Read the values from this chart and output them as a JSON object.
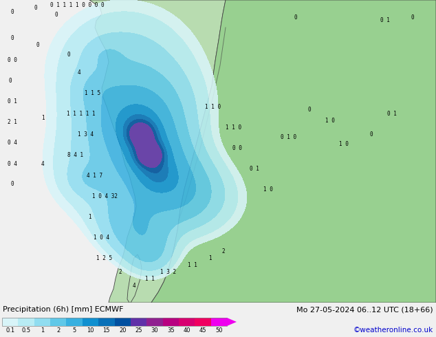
{
  "title_left": "Precipitation (6h) [mm] ECMWF",
  "title_right": "Mo 27-05-2024 06..12 UTC (18+66)",
  "credit": "©weatheronline.co.uk",
  "colorbar_labels": [
    "0.1",
    "0.5",
    "1",
    "2",
    "5",
    "10",
    "15",
    "20",
    "25",
    "30",
    "35",
    "40",
    "45",
    "50"
  ],
  "colorbar_colors": [
    "#d8f4f8",
    "#b8ecf4",
    "#90ddf0",
    "#60c8e8",
    "#38b0e0",
    "#1090d0",
    "#0870b8",
    "#0050a0",
    "#6030a8",
    "#902090",
    "#b80080",
    "#d80070",
    "#f00060",
    "#ee00ee"
  ],
  "sea_color": "#c8ecf8",
  "land_green": "#b8dcb0",
  "land_finland": "#98d090",
  "bg_color": "#c8f0c8",
  "bottom_bg": "#f0f0f0",
  "credit_color": "#0000cc",
  "border_color": "#444444",
  "precip_alpha": 0.88
}
